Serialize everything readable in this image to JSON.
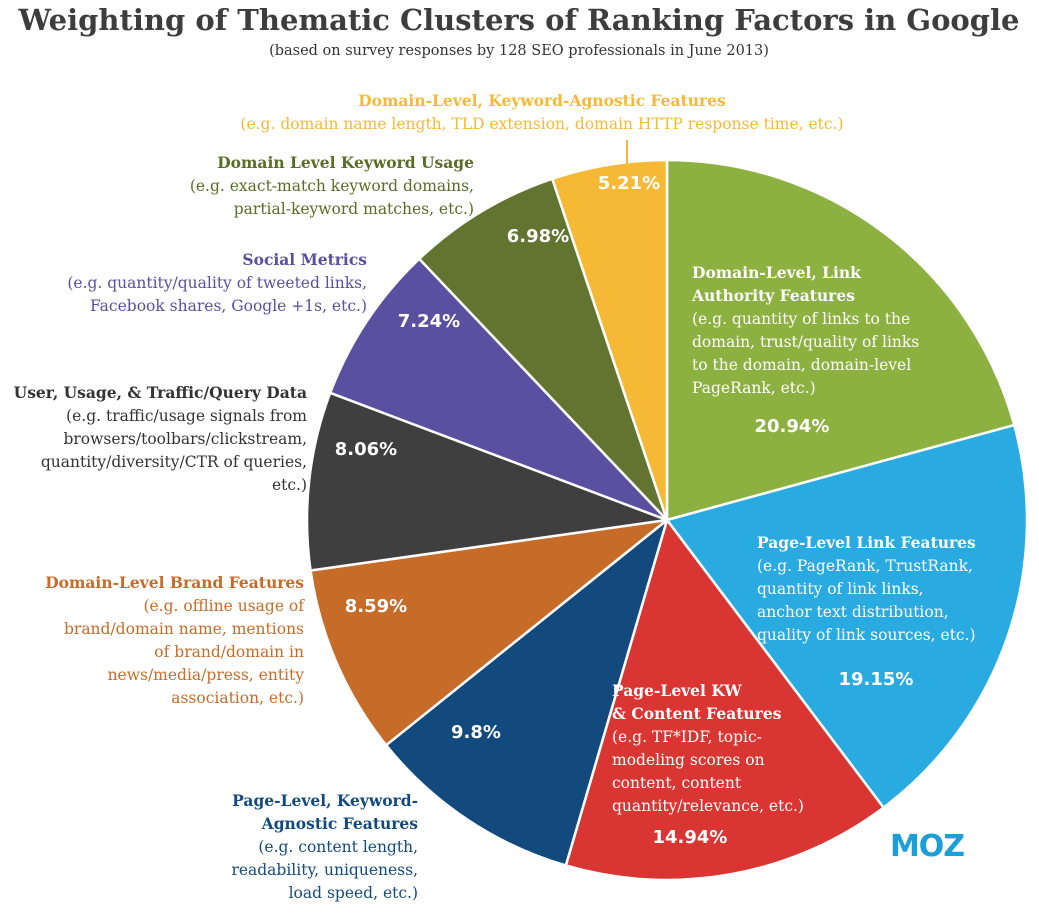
{
  "chart_data": {
    "type": "pie",
    "title": "Weighting of Thematic Clusters of Ranking Factors in Google",
    "subtitle": "(based on survey responses by 128 SEO professionals in June 2013)",
    "slices": [
      {
        "heading": [
          "Domain-Level, Link",
          "Authority Features"
        ],
        "description": [
          "(e.g. quantity of links to the",
          "domain, trust/quality of links",
          "to the domain, domain-level",
          "PageRank, etc.)"
        ],
        "value": 20.94,
        "value_label": "20.94%",
        "color": "#8db141",
        "text_color": "#ffffff"
      },
      {
        "heading": [
          "Page-Level Link Features"
        ],
        "description": [
          "(e.g. PageRank, TrustRank,",
          "quantity of link links,",
          "anchor text distribution,",
          "quality of link sources, etc.)"
        ],
        "value": 19.15,
        "value_label": "19.15%",
        "color": "#29abe2",
        "text_color": "#ffffff"
      },
      {
        "heading": [
          "Page-Level KW",
          "& Content Features"
        ],
        "description": [
          "(e.g. TF*IDF, topic-",
          "modeling scores on",
          "content, content",
          "quantity/relevance, etc.)"
        ],
        "value": 14.94,
        "value_label": "14.94%",
        "color": "#d93633",
        "text_color": "#ffffff"
      },
      {
        "heading": [
          "Page-Level, Keyword-",
          "Agnostic Features"
        ],
        "description": [
          "(e.g. content length,",
          "readability, uniqueness,",
          "load speed, etc.)"
        ],
        "value": 9.8,
        "value_label": "9.8%",
        "color": "#134a7e",
        "text_color": "#134a7e"
      },
      {
        "heading": [
          "Domain-Level Brand Features"
        ],
        "description": [
          "(e.g. offline usage of",
          "brand/domain name, mentions",
          "of brand/domain in",
          "news/media/press, entity",
          "association, etc.)"
        ],
        "value": 8.59,
        "value_label": "8.59%",
        "color": "#c76b28",
        "text_color": "#c76b28"
      },
      {
        "heading": [
          "User, Usage, & Traffic/Query Data"
        ],
        "description": [
          "(e.g. traffic/usage signals from",
          "browsers/toolbars/clickstream,",
          "quantity/diversity/CTR of queries,",
          "etc.)"
        ],
        "value": 8.06,
        "value_label": "8.06%",
        "color": "#3f3f3f",
        "text_color": "#333333"
      },
      {
        "heading": [
          "Social Metrics"
        ],
        "description": [
          "(e.g. quantity/quality of tweeted links,",
          "Facebook shares, Google +1s, etc.)"
        ],
        "value": 7.24,
        "value_label": "7.24%",
        "color": "#5b4fa0",
        "text_color": "#5b4fa0"
      },
      {
        "heading": [
          "Domain Level Keyword Usage"
        ],
        "description": [
          "(e.g. exact-match keyword domains,",
          "partial-keyword matches, etc.)"
        ],
        "value": 6.98,
        "value_label": "6.98%",
        "color": "#637431",
        "text_color": "#5a6d26"
      },
      {
        "heading": [
          "Domain-Level, Keyword-Agnostic Features"
        ],
        "description": [
          "(e.g. domain name length, TLD extension, domain HTTP response time, etc.)"
        ],
        "value": 5.21,
        "value_label": "5.21%",
        "color": "#f6b935",
        "text_color": "#f6b935"
      }
    ]
  },
  "logo": {
    "text": "MOZ",
    "color": "#1a9fd9"
  }
}
